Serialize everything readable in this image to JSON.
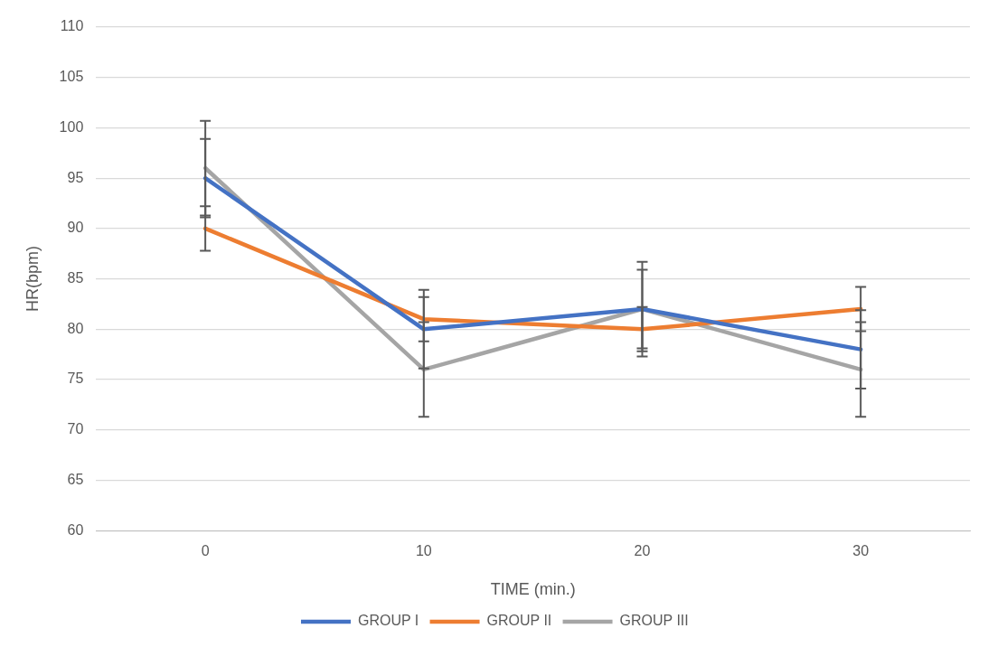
{
  "chart_data": {
    "type": "line",
    "xlabel": "TIME (min.)",
    "ylabel": "HR(bpm)",
    "categories": [
      "0",
      "10",
      "20",
      "30"
    ],
    "series": [
      {
        "name": "GROUP I",
        "color": "#4472c4",
        "values": [
          95,
          80,
          82,
          78
        ],
        "errors": [
          3.9,
          3.9,
          3.9,
          3.9
        ]
      },
      {
        "name": "GROUP II",
        "color": "#ed7d31",
        "values": [
          90,
          81,
          80,
          82
        ],
        "errors": [
          2.2,
          2.2,
          2.2,
          2.2
        ]
      },
      {
        "name": "GROUP III",
        "color": "#a5a5a5",
        "values": [
          96,
          76,
          82,
          76
        ],
        "errors": [
          4.7,
          4.7,
          4.7,
          4.7
        ]
      }
    ],
    "ylim": [
      60,
      110
    ],
    "yticks": [
      60,
      65,
      70,
      75,
      80,
      85,
      90,
      95,
      100,
      105,
      110
    ],
    "grid": "y",
    "legend": "bottom",
    "marker": "none",
    "line_style": "solid"
  }
}
